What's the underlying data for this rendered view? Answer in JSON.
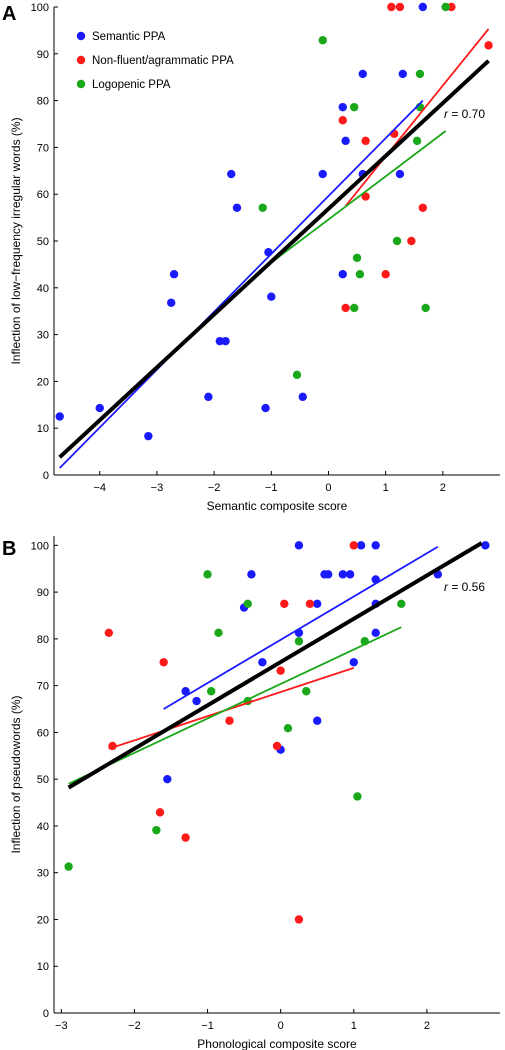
{
  "chart_data": [
    {
      "type": "scatter",
      "panel": "A",
      "xlabel": "Semantic composite score",
      "ylabel": "Inflection of low−frequency irregular words (%)",
      "xlim": [
        -4.8,
        3
      ],
      "ylim": [
        0,
        100
      ],
      "xticks": [
        -4,
        -3,
        -2,
        -1,
        0,
        1,
        2
      ],
      "xtick_labels": [
        "−4",
        "−3",
        "−2",
        "−1",
        "0",
        "1",
        "2"
      ],
      "yticks": [
        0,
        10,
        20,
        30,
        40,
        50,
        60,
        70,
        80,
        90,
        100
      ],
      "legend": {
        "placement": "top-left",
        "entries": [
          "Semantic PPA",
          "Non-fluent/agrammatic PPA",
          "Logopenic PPA"
        ]
      },
      "annotation": {
        "text_italic": "r",
        "text_rest": " = 0.70"
      },
      "series": [
        {
          "name": "Semantic PPA",
          "color": "#1a1aff",
          "points": [
            [
              -4.7,
              12.5
            ],
            [
              -4.0,
              14.3
            ],
            [
              -3.15,
              8.3
            ],
            [
              -2.75,
              36.8
            ],
            [
              -2.7,
              42.9
            ],
            [
              -2.1,
              16.7
            ],
            [
              -1.9,
              28.6
            ],
            [
              -1.8,
              28.6
            ],
            [
              -1.7,
              64.3
            ],
            [
              -1.6,
              57.1
            ],
            [
              -1.1,
              14.3
            ],
            [
              -1.05,
              47.6
            ],
            [
              -1.0,
              38.1
            ],
            [
              -0.45,
              16.7
            ],
            [
              -0.1,
              64.3
            ],
            [
              0.25,
              78.6
            ],
            [
              0.25,
              42.9
            ],
            [
              0.3,
              71.4
            ],
            [
              0.6,
              64.3
            ],
            [
              0.6,
              85.7
            ],
            [
              1.25,
              64.3
            ],
            [
              1.3,
              85.7
            ],
            [
              1.65,
              100
            ]
          ],
          "fit": [
            [
              -4.7,
              1.5
            ],
            [
              1.65,
              80
            ]
          ]
        },
        {
          "name": "Non-fluent/agrammatic PPA",
          "color": "#ff1a1a",
          "points": [
            [
              0.25,
              75.8
            ],
            [
              0.3,
              35.7
            ],
            [
              0.65,
              71.4
            ],
            [
              0.65,
              59.5
            ],
            [
              1.0,
              42.9
            ],
            [
              1.1,
              100
            ],
            [
              1.15,
              72.9
            ],
            [
              1.25,
              100
            ],
            [
              1.45,
              50.0
            ],
            [
              1.65,
              57.1
            ],
            [
              2.15,
              100
            ],
            [
              2.8,
              91.8
            ]
          ],
          "fit": [
            [
              0.3,
              57.5
            ],
            [
              2.8,
              95.3
            ]
          ]
        },
        {
          "name": "Logopenic PPA",
          "color": "#1aa81a",
          "points": [
            [
              -1.15,
              57.1
            ],
            [
              -0.55,
              21.4
            ],
            [
              -0.1,
              92.9
            ],
            [
              0.45,
              78.6
            ],
            [
              0.5,
              46.4
            ],
            [
              0.45,
              35.7
            ],
            [
              0.55,
              42.9
            ],
            [
              1.2,
              50.0
            ],
            [
              1.55,
              71.4
            ],
            [
              1.6,
              78.6
            ],
            [
              1.6,
              85.7
            ],
            [
              1.7,
              35.7
            ],
            [
              2.05,
              100
            ]
          ],
          "fit": [
            [
              -1.15,
              44.0
            ],
            [
              2.05,
              73.5
            ]
          ]
        }
      ],
      "overall_fit": [
        [
          -4.7,
          3.8
        ],
        [
          2.8,
          88.5
        ]
      ]
    },
    {
      "type": "scatter",
      "panel": "B",
      "xlabel": "Phonological composite score",
      "ylabel": "Inflection of pseudowords (%)",
      "xlim": [
        -3.1,
        3
      ],
      "ylim": [
        0,
        102
      ],
      "xticks": [
        -3,
        -2,
        -1,
        0,
        1,
        2
      ],
      "xtick_labels": [
        "−3",
        "−2",
        "−1",
        "0",
        "1",
        "2"
      ],
      "yticks": [
        0,
        10,
        20,
        30,
        40,
        50,
        60,
        70,
        80,
        90,
        100
      ],
      "annotation": {
        "text_italic": "r",
        "text_rest": " = 0.56"
      },
      "series": [
        {
          "name": "Semantic PPA",
          "color": "#1a1aff",
          "points": [
            [
              -1.55,
              50.0
            ],
            [
              -1.3,
              68.8
            ],
            [
              -1.15,
              66.7
            ],
            [
              -0.5,
              86.7
            ],
            [
              -0.4,
              93.8
            ],
            [
              -0.25,
              75.0
            ],
            [
              -0.0,
              56.3
            ],
            [
              0.25,
              100
            ],
            [
              0.25,
              81.3
            ],
            [
              0.5,
              62.5
            ],
            [
              0.5,
              87.5
            ],
            [
              0.6,
              93.8
            ],
            [
              0.65,
              93.8
            ],
            [
              0.85,
              93.8
            ],
            [
              0.95,
              93.8
            ],
            [
              1.0,
              75.0
            ],
            [
              1.1,
              100
            ],
            [
              1.3,
              100
            ],
            [
              1.3,
              92.7
            ],
            [
              1.3,
              81.3
            ],
            [
              1.3,
              87.5
            ],
            [
              2.15,
              93.8
            ],
            [
              2.8,
              100
            ]
          ],
          "fit": [
            [
              -1.6,
              65.0
            ],
            [
              2.15,
              99.7
            ]
          ]
        },
        {
          "name": "Non-fluent/agrammatic PPA",
          "color": "#ff1a1a",
          "points": [
            [
              -2.35,
              81.3
            ],
            [
              -2.3,
              57.1
            ],
            [
              -1.6,
              75.0
            ],
            [
              -1.65,
              42.9
            ],
            [
              -1.3,
              37.5
            ],
            [
              -0.7,
              62.5
            ],
            [
              -0.05,
              57.1
            ],
            [
              0.0,
              73.2
            ],
            [
              0.05,
              87.5
            ],
            [
              0.25,
              20.0
            ],
            [
              0.4,
              87.5
            ],
            [
              1.0,
              100
            ]
          ],
          "fit": [
            [
              -2.35,
              56.5
            ],
            [
              1.0,
              73.8
            ]
          ]
        },
        {
          "name": "Logopenic PPA",
          "color": "#1aa81a",
          "points": [
            [
              -2.9,
              31.3
            ],
            [
              -1.7,
              39.1
            ],
            [
              -1.0,
              93.8
            ],
            [
              -0.95,
              68.8
            ],
            [
              -0.85,
              81.3
            ],
            [
              -0.45,
              87.5
            ],
            [
              -0.45,
              66.7
            ],
            [
              0.1,
              60.9
            ],
            [
              0.25,
              79.5
            ],
            [
              0.35,
              68.8
            ],
            [
              1.05,
              46.3
            ],
            [
              1.15,
              79.5
            ],
            [
              1.65,
              87.5
            ]
          ],
          "fit": [
            [
              -2.9,
              49.0
            ],
            [
              1.65,
              82.5
            ]
          ]
        }
      ],
      "overall_fit": [
        [
          -2.9,
          48.2
        ],
        [
          2.75,
          100.5
        ]
      ]
    }
  ]
}
